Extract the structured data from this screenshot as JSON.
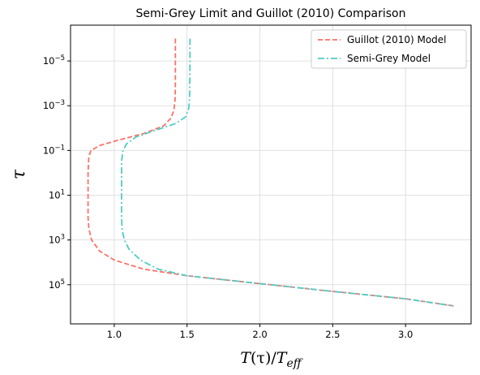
{
  "chart_data": {
    "type": "line",
    "title": "Semi-Grey Limit and Guillot (2010) Comparison",
    "xlabel_parts": {
      "T": "T",
      "tau_left": "(τ)/",
      "T2": "T",
      "sub": "eff"
    },
    "ylabel": "τ",
    "xlim": [
      0.7,
      3.45
    ],
    "ylim_log10": [
      6.75,
      -6.6
    ],
    "y_log_scale": true,
    "y_inverted": true,
    "grid": true,
    "legend_placement": "top-right",
    "x_ticks": [
      {
        "value": 1.0,
        "label": "1.0"
      },
      {
        "value": 1.5,
        "label": "1.5"
      },
      {
        "value": 2.0,
        "label": "2.0"
      },
      {
        "value": 2.5,
        "label": "2.5"
      },
      {
        "value": 3.0,
        "label": "3.0"
      }
    ],
    "y_ticks": [
      {
        "exp": -5,
        "base": "10",
        "sup": "−5"
      },
      {
        "exp": -3,
        "base": "10",
        "sup": "−3"
      },
      {
        "exp": -1,
        "base": "10",
        "sup": "−1"
      },
      {
        "exp": 1,
        "base": "10",
        "sup": "1"
      },
      {
        "exp": 3,
        "base": "10",
        "sup": "3"
      },
      {
        "exp": 5,
        "base": "10",
        "sup": "5"
      }
    ],
    "series": [
      {
        "name": "Guillot (2010) Model",
        "color": "#ff6f69",
        "dash": "6,3",
        "points": [
          [
            1.42,
            -6
          ],
          [
            1.42,
            -5
          ],
          [
            1.42,
            -4
          ],
          [
            1.418,
            -3.3
          ],
          [
            1.41,
            -2.8
          ],
          [
            1.39,
            -2.45
          ],
          [
            1.34,
            -2.1
          ],
          [
            1.2,
            -1.75
          ],
          [
            1.02,
            -1.45
          ],
          [
            0.9,
            -1.22
          ],
          [
            0.84,
            -1.0
          ],
          [
            0.825,
            -0.7
          ],
          [
            0.82,
            0
          ],
          [
            0.82,
            1
          ],
          [
            0.82,
            2
          ],
          [
            0.826,
            2.5
          ],
          [
            0.845,
            3
          ],
          [
            0.9,
            3.5
          ],
          [
            1.0,
            3.9
          ],
          [
            1.2,
            4.3
          ],
          [
            1.5,
            4.6
          ],
          [
            2.0,
            4.95
          ],
          [
            2.5,
            5.3
          ],
          [
            3.0,
            5.63
          ],
          [
            3.33,
            5.95
          ]
        ]
      },
      {
        "name": "Semi-Grey Model",
        "color": "#4ecdc4",
        "dash": "8,3,2,3",
        "points": [
          [
            1.52,
            -6
          ],
          [
            1.52,
            -5
          ],
          [
            1.518,
            -3.5
          ],
          [
            1.512,
            -2.9
          ],
          [
            1.49,
            -2.5
          ],
          [
            1.42,
            -2.2
          ],
          [
            1.28,
            -1.9
          ],
          [
            1.15,
            -1.6
          ],
          [
            1.085,
            -1.3
          ],
          [
            1.06,
            -1.0
          ],
          [
            1.05,
            -0.5
          ],
          [
            1.05,
            1
          ],
          [
            1.05,
            2
          ],
          [
            1.055,
            2.6
          ],
          [
            1.07,
            3.0
          ],
          [
            1.1,
            3.4
          ],
          [
            1.18,
            3.9
          ],
          [
            1.3,
            4.3
          ],
          [
            1.5,
            4.6
          ],
          [
            2.0,
            4.95
          ],
          [
            2.5,
            5.3
          ],
          [
            3.0,
            5.63
          ],
          [
            3.33,
            5.95
          ]
        ]
      }
    ]
  }
}
